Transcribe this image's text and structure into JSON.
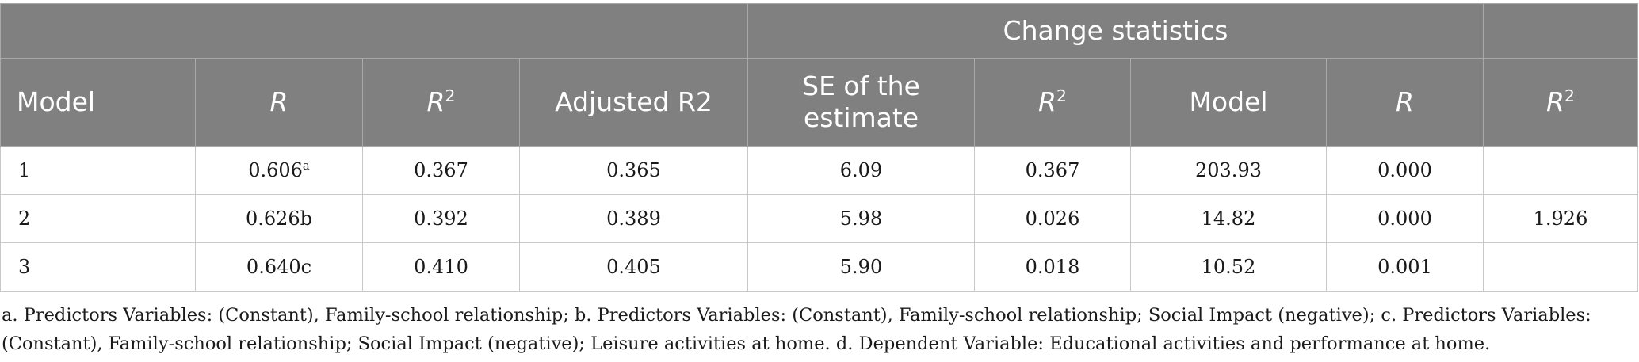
{
  "table": {
    "group_header": {
      "change_statistics": "Change statistics"
    },
    "columns": [
      {
        "label": "Model",
        "sup": ""
      },
      {
        "label": "R",
        "sup": ""
      },
      {
        "label": "R",
        "sup": "2"
      },
      {
        "label": "Adjusted R2",
        "sup": ""
      },
      {
        "label": "SE of the estimate",
        "sup": ""
      },
      {
        "label": "R",
        "sup": "2"
      },
      {
        "label": "Model",
        "sup": ""
      },
      {
        "label": "R",
        "sup": ""
      },
      {
        "label": "R",
        "sup": "2"
      }
    ],
    "rows": [
      {
        "model": "1",
        "r": "0.606",
        "r_sup": "a",
        "r2": "0.367",
        "adj_r2": "0.365",
        "se": "6.09",
        "r2_change": "0.367",
        "model_change": "203.93",
        "r_change": "0.000",
        "r2_last": ""
      },
      {
        "model": "2",
        "r": "0.626b",
        "r_sup": "",
        "r2": "0.392",
        "adj_r2": "0.389",
        "se": "5.98",
        "r2_change": "0.026",
        "model_change": "14.82",
        "r_change": "0.000",
        "r2_last": "1.926"
      },
      {
        "model": "3",
        "r": "0.640c",
        "r_sup": "",
        "r2": "0.410",
        "adj_r2": "0.405",
        "se": "5.90",
        "r2_change": "0.018",
        "model_change": "10.52",
        "r_change": "0.001",
        "r2_last": ""
      }
    ]
  },
  "footnote": "a. Predictors Variables: (Constant), Family-school relationship; b. Predictors Variables: (Constant), Family-school relationship; Social Impact (negative); c. Predictors Variables: (Constant), Family-school relationship; Social Impact (negative); Leisure activities at home. d. Dependent Variable: Educational activities and performance at home."
}
